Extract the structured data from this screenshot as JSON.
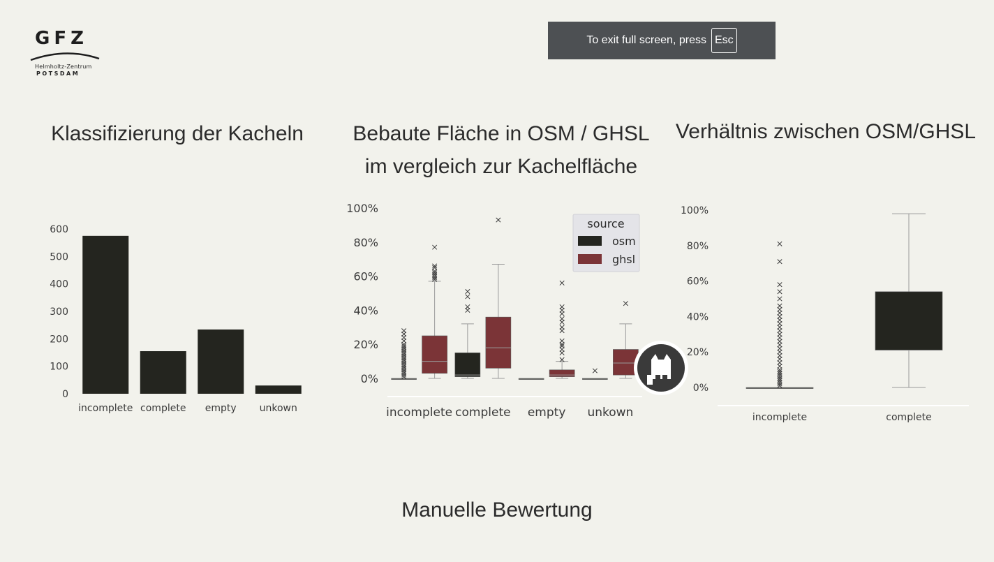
{
  "logo": {
    "name": "GFZ",
    "line1": "Helmholtz-Zentrum",
    "line2": "POTSDAM"
  },
  "fullscreen": {
    "text": "To exit full screen, press",
    "key": "Esc"
  },
  "footer": "Manuelle Bewertung",
  "colors": {
    "osm": "#24251f",
    "ghsl": "#7b3437",
    "background": "#f2f2ec"
  },
  "chart_data": [
    {
      "type": "bar",
      "title": "Klassifizierung der Kacheln",
      "categories": [
        "incomplete",
        "complete",
        "empty",
        "unkown"
      ],
      "values": [
        575,
        155,
        234,
        30
      ],
      "ylim": [
        0,
        600
      ],
      "yticks": [
        0,
        100,
        200,
        300,
        400,
        500,
        600
      ],
      "ytick_labels": [
        "0",
        "100",
        "200",
        "300",
        "400",
        "500",
        "600"
      ],
      "grid": false
    },
    {
      "type": "box",
      "title": "Bebaute Fläche in OSM / GHSL",
      "title_line2": "im vergleich zur Kachelfläche",
      "categories": [
        "incomplete",
        "complete",
        "empty",
        "unkown"
      ],
      "ylim": [
        0,
        100
      ],
      "yticks": [
        0,
        20,
        40,
        60,
        80,
        100
      ],
      "ytick_labels": [
        "0%",
        "20%",
        "40%",
        "60%",
        "80%",
        "100%"
      ],
      "legend": {
        "title": "source",
        "position": "top-right",
        "entries": [
          "osm",
          "ghsl"
        ]
      },
      "series": [
        {
          "name": "osm",
          "boxes": [
            {
              "min": 0,
              "q1": 0,
              "median": 0,
              "q3": 0,
              "max": 0,
              "outliers": [
                1,
                2,
                3,
                4,
                5,
                6,
                7,
                8,
                9,
                10,
                11,
                12,
                13,
                14,
                15,
                16,
                17,
                18,
                19,
                20,
                22,
                24,
                26,
                28
              ]
            },
            {
              "min": 0,
              "q1": 1,
              "median": 2,
              "q3": 15,
              "max": 32,
              "outliers": [
                40,
                42,
                48,
                51
              ]
            },
            {
              "min": 0,
              "q1": 0,
              "median": 0,
              "q3": 0,
              "max": 0,
              "outliers": []
            },
            {
              "min": 0,
              "q1": 0,
              "median": 0,
              "q3": 0,
              "max": 0,
              "outliers": [
                4.5
              ]
            }
          ]
        },
        {
          "name": "ghsl",
          "boxes": [
            {
              "min": 0,
              "q1": 3,
              "median": 10,
              "q3": 25,
              "max": 57,
              "outliers": [
                58,
                59,
                60,
                61,
                62,
                63,
                65,
                66,
                77
              ]
            },
            {
              "min": 0,
              "q1": 6,
              "median": 18,
              "q3": 36,
              "max": 67,
              "outliers": [
                93
              ]
            },
            {
              "min": 0,
              "q1": 1,
              "median": 2,
              "q3": 5,
              "max": 10,
              "outliers": [
                11,
                15,
                17,
                19,
                20,
                22,
                28,
                30,
                33,
                35,
                38,
                40,
                42,
                56
              ]
            },
            {
              "min": 0,
              "q1": 2,
              "median": 9,
              "q3": 17,
              "max": 32,
              "outliers": [
                44
              ]
            }
          ]
        }
      ]
    },
    {
      "type": "box",
      "title": "Verhältnis zwischen OSM/GHSL",
      "categories": [
        "incomplete",
        "complete"
      ],
      "ylim": [
        0,
        100
      ],
      "yticks": [
        0,
        20,
        40,
        60,
        80,
        100
      ],
      "ytick_labels": [
        "0%",
        "20%",
        "40%",
        "60%",
        "80%",
        "100%"
      ],
      "series": [
        {
          "name": "",
          "boxes": [
            {
              "min": 0,
              "q1": 0,
              "median": 0,
              "q3": 0,
              "max": 0,
              "outliers": [
                1,
                2,
                3,
                4,
                5,
                6,
                7,
                8,
                9,
                10,
                12,
                14,
                16,
                18,
                20,
                22,
                24,
                26,
                28,
                30,
                32,
                34,
                36,
                38,
                40,
                42,
                44,
                46,
                50,
                54,
                58,
                71,
                81
              ]
            },
            {
              "min": 0,
              "q1": 21,
              "median": 21,
              "q3": 54,
              "max": 98,
              "outliers": []
            }
          ]
        }
      ]
    }
  ]
}
